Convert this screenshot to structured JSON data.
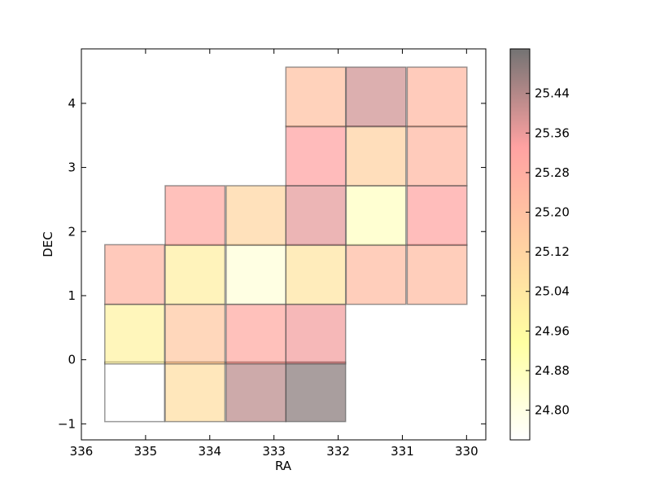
{
  "chart_data": {
    "type": "heatmap",
    "xlabel": "RA",
    "ylabel": "DEC",
    "xlim": [
      336,
      329.7
    ],
    "ylim": [
      -1.25,
      4.85
    ],
    "x_ticks": [
      336,
      335,
      334,
      333,
      332,
      331,
      330
    ],
    "y_ticks": [
      -1,
      0,
      1,
      2,
      3,
      4
    ],
    "cells": [
      {
        "ra": 335.17,
        "dec": -0.5,
        "value": 24.74
      },
      {
        "ra": 334.23,
        "dec": -0.5,
        "value": 25.08
      },
      {
        "ra": 333.28,
        "dec": -0.5,
        "value": 25.43
      },
      {
        "ra": 332.35,
        "dec": -0.5,
        "value": 25.5
      },
      {
        "ra": 335.17,
        "dec": 0.4,
        "value": 24.99
      },
      {
        "ra": 334.23,
        "dec": 0.4,
        "value": 25.17
      },
      {
        "ra": 333.28,
        "dec": 0.4,
        "value": 25.3
      },
      {
        "ra": 332.35,
        "dec": 0.4,
        "value": 25.35
      },
      {
        "ra": 335.17,
        "dec": 1.33,
        "value": 25.25
      },
      {
        "ra": 334.23,
        "dec": 1.33,
        "value": 25.01
      },
      {
        "ra": 333.28,
        "dec": 1.33,
        "value": 24.82
      },
      {
        "ra": 332.35,
        "dec": 1.33,
        "value": 25.05
      },
      {
        "ra": 331.41,
        "dec": 1.33,
        "value": 25.22
      },
      {
        "ra": 330.46,
        "dec": 1.33,
        "value": 25.22
      },
      {
        "ra": 334.23,
        "dec": 2.25,
        "value": 25.3
      },
      {
        "ra": 333.28,
        "dec": 2.25,
        "value": 25.11
      },
      {
        "ra": 332.35,
        "dec": 2.25,
        "value": 25.37
      },
      {
        "ra": 331.41,
        "dec": 2.25,
        "value": 24.87
      },
      {
        "ra": 330.46,
        "dec": 2.25,
        "value": 25.32
      },
      {
        "ra": 332.35,
        "dec": 3.18,
        "value": 25.33
      },
      {
        "ra": 331.41,
        "dec": 3.18,
        "value": 25.13
      },
      {
        "ra": 330.46,
        "dec": 3.18,
        "value": 25.24
      },
      {
        "ra": 332.35,
        "dec": 4.1,
        "value": 25.2
      },
      {
        "ra": 331.41,
        "dec": 4.1,
        "value": 25.4
      },
      {
        "ra": 330.46,
        "dec": 4.1,
        "value": 25.24
      }
    ],
    "colorbar": {
      "vmin": 24.74,
      "vmax": 25.53,
      "ticks": [
        "24.80",
        "24.88",
        "24.96",
        "25.04",
        "25.12",
        "25.20",
        "25.28",
        "25.36",
        "25.44"
      ],
      "colormap": [
        "#ffffff",
        "#ffff55",
        "#ffaa55",
        "#ff5555",
        "#000000"
      ]
    },
    "grid": false,
    "legend": "colorbar-right"
  }
}
